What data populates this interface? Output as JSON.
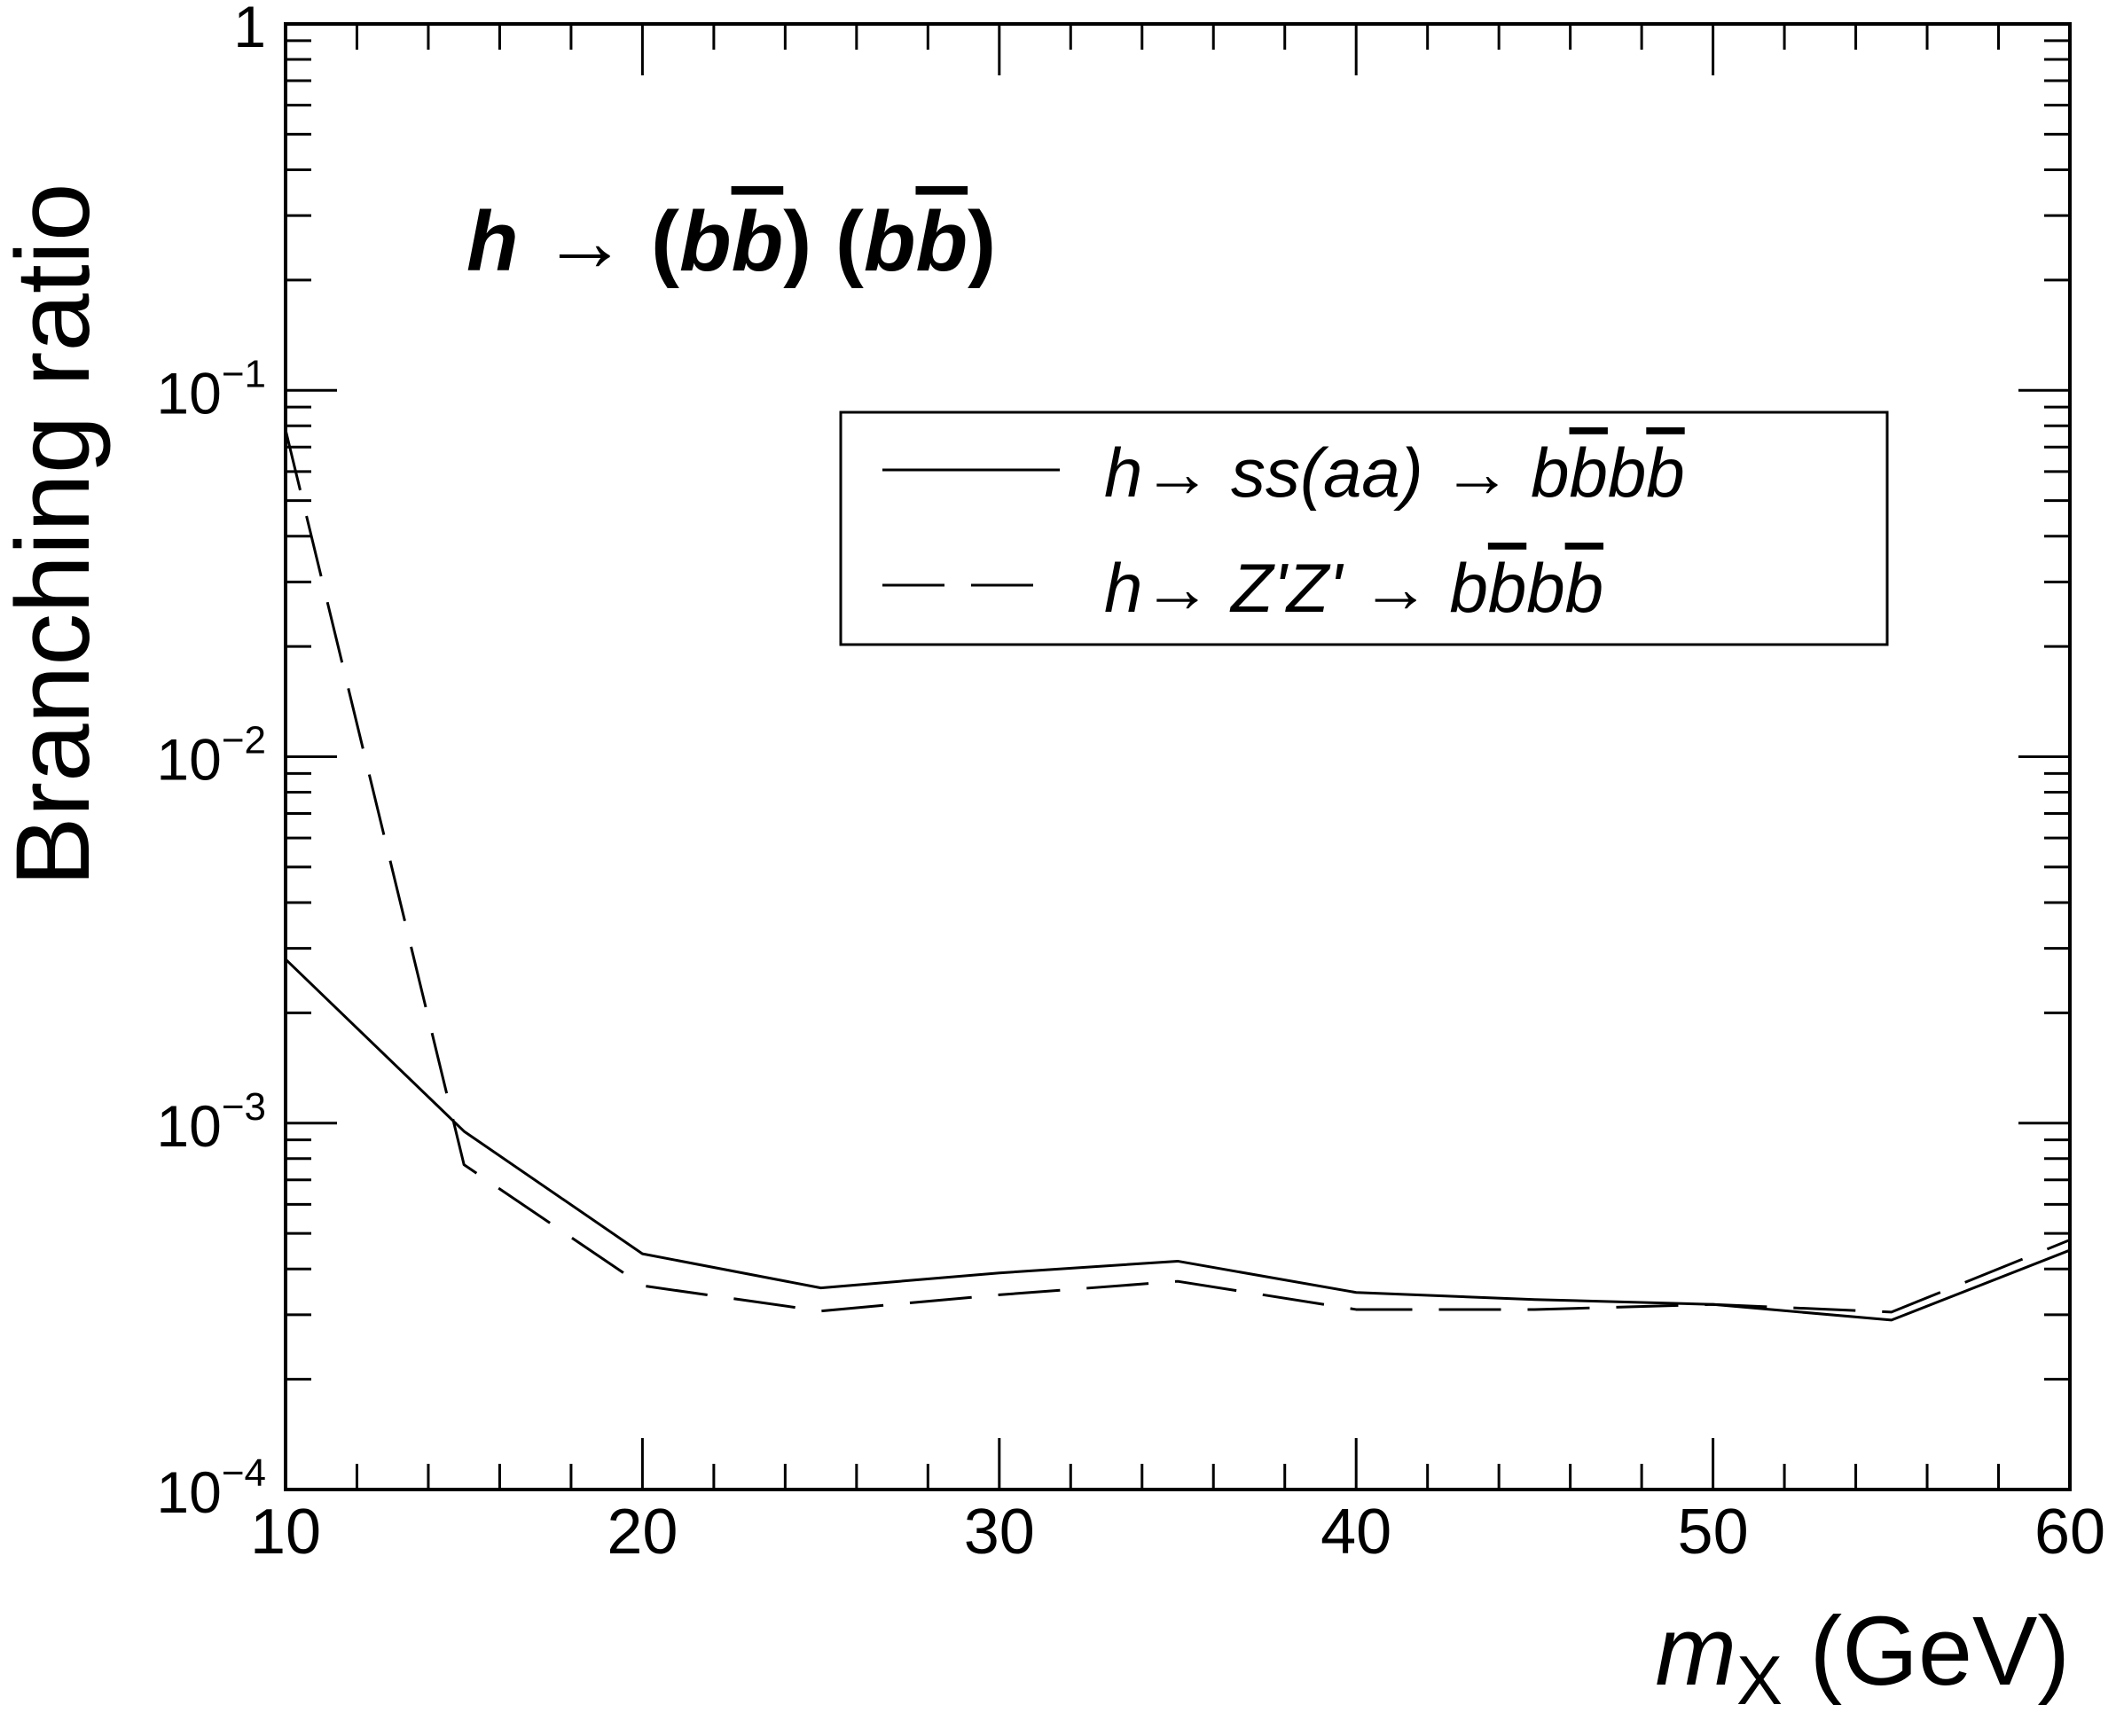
{
  "chart_data": {
    "type": "line",
    "title_parts": [
      "h",
      " → (",
      "b",
      "b",
      ") (",
      "b",
      "b",
      ")"
    ],
    "xlabel_var": "m",
    "xlabel_sub": "X",
    "xlabel_unit": " (GeV)",
    "ylabel": "Branching ratio",
    "xlim": [
      10,
      60
    ],
    "ylim": [
      0.0001,
      1
    ],
    "yscale": "log",
    "x_ticks": [
      "10",
      "20",
      "30",
      "40",
      "50",
      "60"
    ],
    "y_ticks": [
      {
        "base": "1",
        "exp": ""
      },
      {
        "base": "10",
        "exp": "−1"
      },
      {
        "base": "10",
        "exp": "−2"
      },
      {
        "base": "10",
        "exp": "−3"
      },
      {
        "base": "10",
        "exp": "−4"
      }
    ],
    "x": [
      10,
      15,
      20,
      25,
      30,
      35,
      40,
      45,
      50,
      55,
      60
    ],
    "series": [
      {
        "name": "h→ ss(aa) → bb̄bb̄",
        "style": "solid",
        "legend_parts": [
          "h→ ss(",
          "aa",
          ") → ",
          "b",
          "b",
          "b",
          "b"
        ],
        "values": [
          0.0028,
          0.00095,
          0.00044,
          0.000355,
          0.00039,
          0.00042,
          0.000345,
          0.00033,
          0.00032,
          0.00029,
          0.00045
        ]
      },
      {
        "name": "h→ Z'Z' → bb̄bb̄",
        "style": "dashed",
        "legend_parts": [
          "h→ Z'Z' → ",
          "b",
          "b",
          "b",
          "b"
        ],
        "values": [
          0.078,
          0.00077,
          0.00036,
          0.000307,
          0.00034,
          0.00037,
          0.00031,
          0.00031,
          0.00032,
          0.000305,
          0.00048
        ]
      }
    ],
    "legend_position": "upper-right",
    "grid": false,
    "colors": {
      "line": "#000000",
      "background": "#ffffff"
    }
  }
}
